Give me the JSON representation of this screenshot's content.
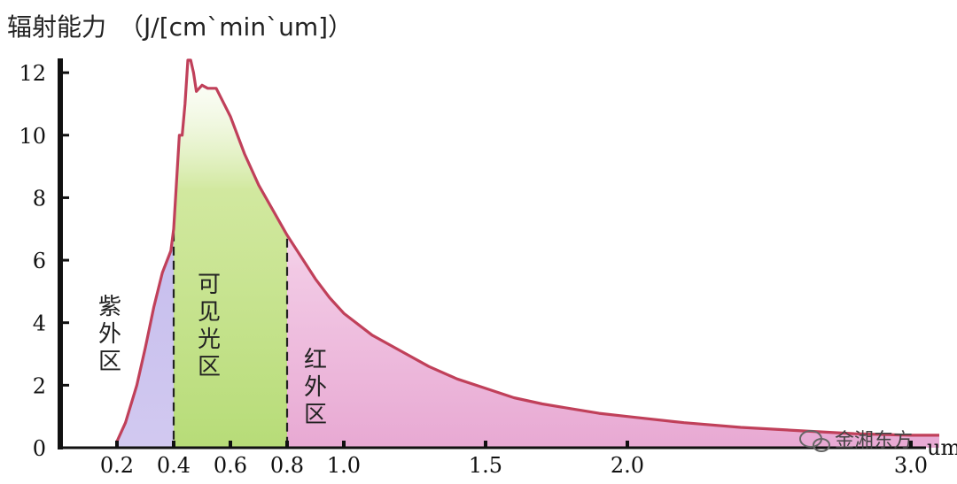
{
  "chart_data": {
    "type": "area",
    "title": "辐射能力　（J/[cm`min`um]）",
    "xlabel": "",
    "ylabel": "",
    "xlim": [
      0.0,
      3.1
    ],
    "ylim": [
      0,
      12.4
    ],
    "x_ticks": [
      {
        "value": 0.2,
        "label": "0.2"
      },
      {
        "value": 0.4,
        "label": "0.4"
      },
      {
        "value": 0.6,
        "label": "0.6"
      },
      {
        "value": 0.8,
        "label": "0.8"
      },
      {
        "value": 1.0,
        "label": "1.0"
      },
      {
        "value": 1.5,
        "label": "1.5"
      },
      {
        "value": 2.0,
        "label": "2.0"
      },
      {
        "value": 3.0,
        "label": "3.0"
      }
    ],
    "y_ticks": [
      0,
      2,
      4,
      6,
      8,
      10,
      12
    ],
    "x_unit_label": "um",
    "grid": false,
    "series": [
      {
        "x": [
          0.2,
          0.23,
          0.27,
          0.3,
          0.33,
          0.36,
          0.39,
          0.4,
          0.42,
          0.43,
          0.44,
          0.45,
          0.46,
          0.47,
          0.48,
          0.5,
          0.52,
          0.55,
          0.6,
          0.65,
          0.7,
          0.75,
          0.8,
          0.85,
          0.9,
          0.95,
          1.0,
          1.1,
          1.2,
          1.3,
          1.4,
          1.5,
          1.6,
          1.7,
          1.8,
          1.9,
          2.0,
          2.2,
          2.4,
          2.6,
          2.8,
          3.0,
          3.1
        ],
        "y": [
          0.2,
          0.8,
          2.0,
          3.2,
          4.5,
          5.6,
          6.3,
          7.0,
          10.0,
          10.0,
          11.0,
          12.4,
          12.4,
          12.0,
          11.4,
          11.6,
          11.5,
          11.5,
          10.6,
          9.4,
          8.4,
          7.6,
          6.8,
          6.1,
          5.4,
          4.8,
          4.3,
          3.6,
          3.1,
          2.6,
          2.2,
          1.9,
          1.6,
          1.4,
          1.25,
          1.1,
          1.0,
          0.8,
          0.65,
          0.55,
          0.45,
          0.4,
          0.4
        ]
      }
    ],
    "regions": [
      {
        "label": [
          "紫",
          "外",
          "区"
        ],
        "x_start": 0.2,
        "x_end": 0.4,
        "color": "#b0a6e0"
      },
      {
        "label": [
          "可",
          "见",
          "光",
          "区"
        ],
        "x_start": 0.4,
        "x_end": 0.8,
        "color": "#c6e48a"
      },
      {
        "label": [
          "红",
          "外",
          "区"
        ],
        "x_start": 0.8,
        "x_end": 3.1,
        "color": "#e8aad2"
      }
    ],
    "region_dividers": [
      0.4,
      0.8
    ],
    "line_color": "#c0405a"
  },
  "watermark": "金湘东方"
}
